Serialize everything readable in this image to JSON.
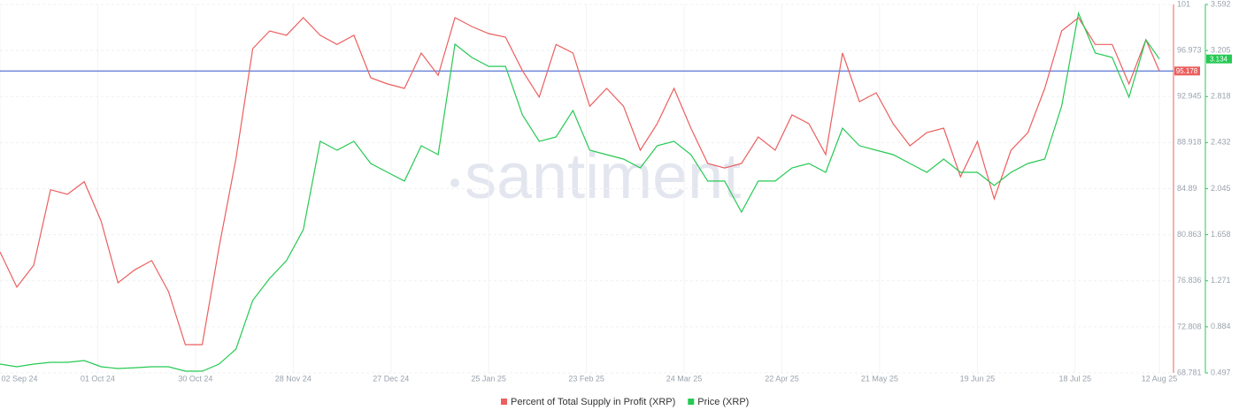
{
  "chart_data": {
    "type": "line",
    "watermark": "santiment",
    "x": [
      "2024-09-02",
      "2024-09-07",
      "2024-09-12",
      "2024-09-17",
      "2024-09-22",
      "2024-09-27",
      "2024-10-02",
      "2024-10-07",
      "2024-10-12",
      "2024-10-17",
      "2024-10-22",
      "2024-10-27",
      "2024-11-01",
      "2024-11-06",
      "2024-11-11",
      "2024-11-16",
      "2024-11-21",
      "2024-11-26",
      "2024-12-01",
      "2024-12-06",
      "2024-12-11",
      "2024-12-16",
      "2024-12-21",
      "2024-12-26",
      "2024-12-31",
      "2025-01-05",
      "2025-01-10",
      "2025-01-15",
      "2025-01-20",
      "2025-01-25",
      "2025-01-30",
      "2025-02-04",
      "2025-02-09",
      "2025-02-14",
      "2025-02-19",
      "2025-02-24",
      "2025-03-01",
      "2025-03-06",
      "2025-03-11",
      "2025-03-16",
      "2025-03-21",
      "2025-03-26",
      "2025-03-31",
      "2025-04-05",
      "2025-04-10",
      "2025-04-15",
      "2025-04-20",
      "2025-04-25",
      "2025-04-30",
      "2025-05-05",
      "2025-05-10",
      "2025-05-15",
      "2025-05-20",
      "2025-05-25",
      "2025-05-30",
      "2025-06-04",
      "2025-06-09",
      "2025-06-14",
      "2025-06-19",
      "2025-06-24",
      "2025-06-29",
      "2025-07-04",
      "2025-07-09",
      "2025-07-14",
      "2025-07-19",
      "2025-07-24",
      "2025-07-29",
      "2025-08-03",
      "2025-08-08",
      "2025-08-12"
    ],
    "series": [
      {
        "name": "Percent of Total Supply in Profit (XRP)",
        "color": "#ec5f5f",
        "axis": "y",
        "last_value": 95.178,
        "values": [
          79.37,
          76.28,
          78.2,
          84.8,
          84.4,
          85.5,
          82.07,
          76.66,
          77.8,
          78.6,
          75.89,
          71.25,
          71.25,
          79.75,
          87.5,
          97.14,
          98.68,
          98.3,
          99.84,
          98.3,
          97.5,
          98.3,
          94.59,
          94.05,
          93.66,
          96.75,
          94.8,
          99.84,
          99.07,
          98.45,
          98.14,
          95.21,
          92.9,
          97.5,
          96.75,
          92.1,
          93.66,
          92.1,
          88.25,
          90.57,
          93.66,
          90.18,
          87.09,
          86.7,
          87.09,
          89.41,
          88.25,
          91.34,
          90.57,
          87.87,
          96.75,
          92.5,
          93.27,
          90.57,
          88.64,
          89.8,
          90.18,
          85.93,
          89.02,
          84.0,
          88.25,
          89.8,
          93.66,
          98.68,
          99.84,
          97.5,
          97.5,
          94.05,
          97.91,
          95.178
        ]
      },
      {
        "name": "Price (XRP)",
        "color": "#26c953",
        "axis": "y2",
        "last_value": 3.134,
        "values": [
          0.571,
          0.549,
          0.571,
          0.586,
          0.586,
          0.601,
          0.549,
          0.534,
          0.541,
          0.549,
          0.549,
          0.512,
          0.512,
          0.571,
          0.697,
          1.106,
          1.291,
          1.44,
          1.699,
          2.442,
          2.367,
          2.442,
          2.256,
          2.182,
          2.108,
          2.405,
          2.33,
          3.258,
          3.147,
          3.072,
          3.072,
          2.664,
          2.442,
          2.479,
          2.701,
          2.367,
          2.33,
          2.293,
          2.219,
          2.405,
          2.442,
          2.33,
          2.108,
          2.108,
          1.848,
          2.108,
          2.108,
          2.219,
          2.256,
          2.182,
          2.553,
          2.405,
          2.367,
          2.33,
          2.256,
          2.182,
          2.293,
          2.182,
          2.182,
          2.071,
          2.182,
          2.256,
          2.293,
          2.738,
          3.518,
          3.184,
          3.147,
          2.813,
          3.295,
          3.134
        ]
      }
    ],
    "xlim": [
      "2024-09-02",
      "2025-08-12"
    ],
    "xticks": [
      {
        "value": "2024-09-02",
        "label": "02 Sep 24"
      },
      {
        "value": "2024-10-01",
        "label": "01 Oct 24"
      },
      {
        "value": "2024-10-30",
        "label": "30 Oct 24"
      },
      {
        "value": "2024-11-28",
        "label": "28 Nov 24"
      },
      {
        "value": "2024-12-27",
        "label": "27 Dec 24"
      },
      {
        "value": "2025-01-25",
        "label": "25 Jan 25"
      },
      {
        "value": "2025-02-23",
        "label": "23 Feb 25"
      },
      {
        "value": "2025-03-24",
        "label": "24 Mar 25"
      },
      {
        "value": "2025-04-22",
        "label": "22 Apr 25"
      },
      {
        "value": "2025-05-21",
        "label": "21 May 25"
      },
      {
        "value": "2025-06-19",
        "label": "19 Jun 25"
      },
      {
        "value": "2025-07-18",
        "label": "18 Jul 25"
      },
      {
        "value": "2025-08-12",
        "label": "12 Aug 25"
      }
    ],
    "ylim": [
      68.781,
      101
    ],
    "yticks": [
      68.781,
      72.808,
      76.836,
      80.863,
      84.89,
      88.918,
      92.945,
      96.973,
      101
    ],
    "y2lim": [
      0.497,
      3.592
    ],
    "y2ticks": [
      0.497,
      0.884,
      1.271,
      1.658,
      2.045,
      2.432,
      2.818,
      3.205,
      3.592
    ],
    "grid": true,
    "last_value_line_color": "#5b78d6",
    "legend": "bottom"
  }
}
